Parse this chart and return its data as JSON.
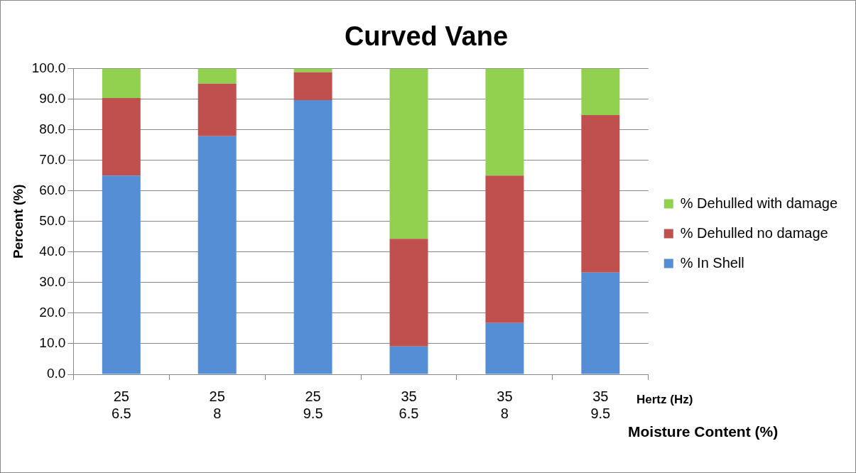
{
  "chart_data": {
    "type": "bar",
    "title": "Curved Vane",
    "ylabel": "Percent (%)",
    "xlabel": "Hertz (Hz)\nMoisture Content (%)",
    "categories": [
      "25\n6.5",
      "25\n8",
      "25\n9.5",
      "35\n6.5",
      "35\n8",
      "35\n9.5"
    ],
    "stacked": true,
    "series": [
      {
        "name": "% In Shell",
        "color": "#558ed5",
        "values": [
          65.0,
          77.9,
          89.7,
          9.1,
          16.8,
          33.3
        ]
      },
      {
        "name": "% Dehulled no damage",
        "color": "#c0504d",
        "values": [
          25.4,
          17.2,
          9.1,
          35.2,
          48.2,
          51.5
        ]
      },
      {
        "name": "% Dehulled with damage",
        "color": "#92d050",
        "values": [
          9.6,
          4.9,
          1.2,
          55.7,
          35.0,
          15.2
        ]
      }
    ],
    "ylim": [
      0,
      100
    ],
    "yticks": [
      {
        "value": 0,
        "label": "0.0"
      },
      {
        "value": 10,
        "label": "10.0"
      },
      {
        "value": 20,
        "label": "20.0"
      },
      {
        "value": 30,
        "label": "30.0"
      },
      {
        "value": 40,
        "label": "40.0"
      },
      {
        "value": 50,
        "label": "50.0"
      },
      {
        "value": 60,
        "label": "60.0"
      },
      {
        "value": 70,
        "label": "70.0"
      },
      {
        "value": 80,
        "label": "80.0"
      },
      {
        "value": 90,
        "label": "90.0"
      },
      {
        "value": 100,
        "label": "100.0"
      }
    ],
    "grid": "y",
    "legend": "right"
  }
}
